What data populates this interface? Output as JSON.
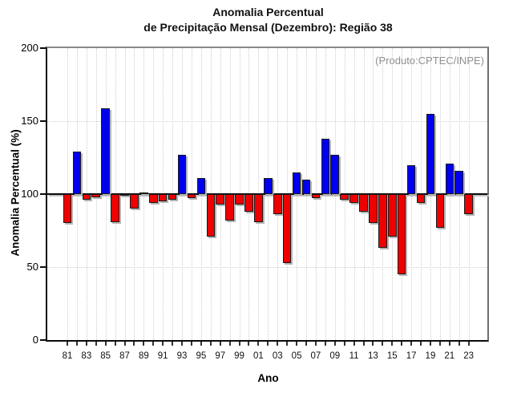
{
  "title": {
    "line1": "Anomalia Percentual",
    "line2": "de Precipitação Mensal (Dezembro): Região 38"
  },
  "annotation": "(Produto:CPTEC/INPE)",
  "axes": {
    "x_label": "Ano",
    "y_label": "Anomalia Percentual (%)",
    "y_tick_labels": [
      "0",
      "50",
      "100",
      "150",
      "200"
    ],
    "y_ticks": [
      0,
      50,
      100,
      150,
      200
    ],
    "x_tick_labels": [
      "81",
      "83",
      "85",
      "87",
      "89",
      "91",
      "93",
      "95",
      "97",
      "99",
      "01",
      "03",
      "05",
      "07",
      "09",
      "11",
      "13",
      "15",
      "17",
      "19",
      "21",
      "23"
    ]
  },
  "chart_data": {
    "type": "bar",
    "title": "Anomalia Percentual de Precipitação Mensal (Dezembro): Região 38",
    "xlabel": "Ano",
    "ylabel": "Anomalia Percentual (%)",
    "ylim": [
      0,
      200
    ],
    "baseline": 100,
    "grid": {
      "vertical": "dotted per year",
      "horizontal_dotted": [
        50,
        150
      ],
      "horizontal_solid": [
        100
      ]
    },
    "legend_position": "none",
    "categories": [
      "81",
      "82",
      "83",
      "84",
      "85",
      "86",
      "87",
      "88",
      "89",
      "90",
      "91",
      "92",
      "93",
      "94",
      "95",
      "96",
      "97",
      "98",
      "99",
      "00",
      "01",
      "02",
      "03",
      "04",
      "05",
      "06",
      "07",
      "08",
      "09",
      "10",
      "11",
      "12",
      "13",
      "14",
      "15",
      "16",
      "17",
      "18",
      "19",
      "20",
      "21",
      "22",
      "23"
    ],
    "values": [
      80,
      129,
      96,
      98,
      159,
      81,
      100,
      90,
      101,
      94,
      95,
      96,
      127,
      97,
      111,
      71,
      93,
      82,
      93,
      88,
      81,
      111,
      86,
      53,
      115,
      110,
      97,
      138,
      127,
      96,
      94,
      88,
      80,
      63,
      71,
      45,
      120,
      94,
      155,
      77,
      121,
      116,
      86
    ],
    "colors": {
      "above_baseline": "#0000EE",
      "below_baseline": "#EE0000",
      "bar_border": "#1a1a1a"
    }
  }
}
